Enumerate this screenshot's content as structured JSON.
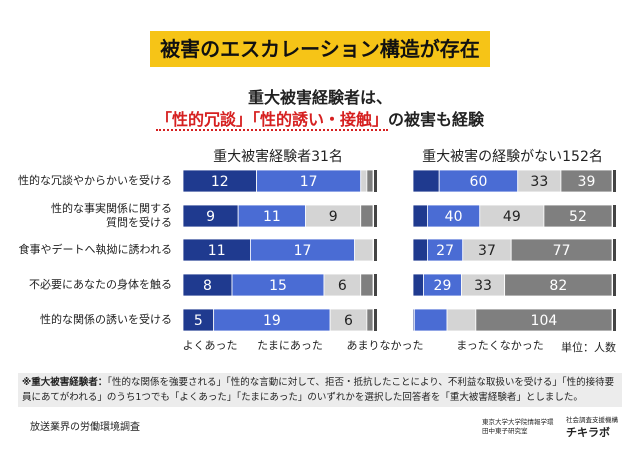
{
  "title": "被害のエスカレーション構造が存在",
  "subtitle_line1": "重大被害経験者は、",
  "subtitle_highlight": "「性的冗談」「性的誘い・接触」",
  "subtitle_rest": "の被害も経験",
  "chart_data": [
    {
      "type": "bar",
      "orientation": "horizontal",
      "stacked": true,
      "title": "重大被害経験者31名",
      "categories": [
        "性的な冗談やからかいを受ける",
        "性的な事実関係に関する\n質問を受ける",
        "食事やデートへ執拗に誘われる",
        "不必要にあなたの身体を触る",
        "性的な関係の誘いを受ける"
      ],
      "xlim": [
        0,
        31
      ],
      "series": [
        {
          "name": "よくあった",
          "color": "#1f3a8f",
          "values": [
            12,
            9,
            11,
            8,
            5
          ],
          "value_labels": [
            "12",
            "9",
            "11",
            "8",
            "5"
          ]
        },
        {
          "name": "たまにあった",
          "color": "#4a6cd4",
          "values": [
            17,
            11,
            17,
            15,
            19
          ],
          "value_labels": [
            "17",
            "11",
            "17",
            "15",
            "19"
          ]
        },
        {
          "name": "あまりなかった",
          "color": "#d4d4d4",
          "values": [
            1,
            9,
            3,
            6,
            6
          ],
          "value_labels": [
            null,
            "9",
            null,
            "6",
            "6"
          ]
        },
        {
          "name": "まったくなかった",
          "color": "#7f7f7f",
          "values": [
            1,
            2,
            0,
            2,
            1
          ],
          "value_labels": [
            null,
            null,
            null,
            null,
            null
          ]
        }
      ]
    },
    {
      "type": "bar",
      "orientation": "horizontal",
      "stacked": true,
      "title": "重大被害の経験がない152名",
      "xlim": [
        0,
        152
      ],
      "series": [
        {
          "color": "#1f3a8f",
          "values": [
            20,
            11,
            11,
            8,
            1
          ],
          "value_labels": [
            null,
            null,
            null,
            null,
            null
          ]
        },
        {
          "color": "#4a6cd4",
          "values": [
            60,
            40,
            27,
            29,
            25
          ],
          "value_labels": [
            "60",
            "40",
            "27",
            "29",
            null
          ]
        },
        {
          "color": "#d4d4d4",
          "values": [
            33,
            49,
            37,
            33,
            22
          ],
          "value_labels": [
            "33",
            "49",
            "37",
            "33",
            null
          ]
        },
        {
          "color": "#7f7f7f",
          "values": [
            39,
            52,
            77,
            82,
            104
          ],
          "value_labels": [
            "39",
            "52",
            "77",
            "82",
            "104"
          ]
        }
      ]
    }
  ],
  "unit": "単位：人数",
  "footnote_label": "※重大被害経験者：",
  "footnote_text": "「性的な関係を強要される」「性的な言動に対して、拒否・抵抗したことにより、不利益な取扱いを受ける」「性的接待要員にあてがわれる」のうち1つでも「よくあった」「たまにあった」のいずれかを選択した回答者を「重大被害経験者」としました。",
  "source": "放送業界の労働環境調査",
  "org1_line1": "東京大学大学院情報学環",
  "org1_line2": "田中東子研究室",
  "org2_line1": "社会調査支援機構",
  "org2_line2": "チキラボ"
}
